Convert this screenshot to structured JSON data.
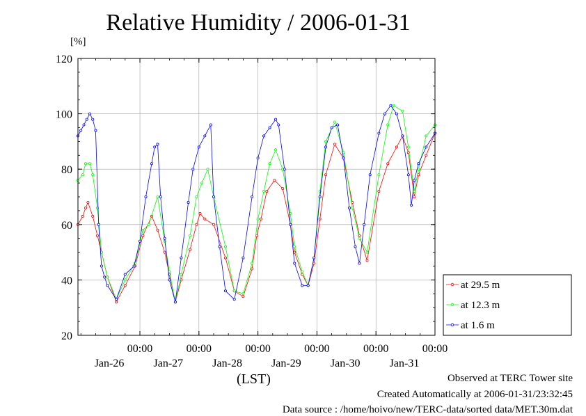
{
  "page": {
    "title": "Relative Humidity / 2006-01-31",
    "unit_label": "[%]",
    "timezone_label": "(LST)",
    "footer": {
      "observed": "Observed at TERC Tower site",
      "created": "Created Automatically at 2006-01-31/23:32:45",
      "source": "Data source : /home/hoivo/new/TERC-data/sorted data/MET.30m.dat"
    }
  },
  "chart_data": {
    "type": "line",
    "title": "Relative Humidity / 2006-01-31",
    "ylabel": "[%]",
    "xlabel": "(LST)",
    "ylim": [
      20,
      120
    ],
    "y_ticks": [
      20,
      40,
      60,
      80,
      100,
      120
    ],
    "xlim": [
      -0.05,
      6.0
    ],
    "x_unit": "days since 2006-01-25 00:00 LST",
    "x_time_label": "00:00",
    "x_ticks": [
      {
        "x": 1,
        "date": "Jan-26"
      },
      {
        "x": 2,
        "date": "Jan-27"
      },
      {
        "x": 3,
        "date": "Jan-28"
      },
      {
        "x": 4,
        "date": "Jan-29"
      },
      {
        "x": 5,
        "date": "Jan-30"
      },
      {
        "x": 6,
        "date": "Jan-31"
      }
    ],
    "grid": true,
    "legend_position": "right, outside plot, bottom",
    "series": [
      {
        "name": "at 29.5 m",
        "color": "#ff0000",
        "x": [
          -0.05,
          0.03,
          0.08,
          0.12,
          0.2,
          0.28,
          0.35,
          0.45,
          0.6,
          0.75,
          0.92,
          1.05,
          1.2,
          1.3,
          1.42,
          1.5,
          1.6,
          1.7,
          1.85,
          1.96,
          2.02,
          2.1,
          2.25,
          2.45,
          2.6,
          2.75,
          2.9,
          2.98,
          3.05,
          3.15,
          3.28,
          3.42,
          3.55,
          3.62,
          3.75,
          3.85,
          3.95,
          4.05,
          4.15,
          4.3,
          4.45,
          4.6,
          4.72,
          4.85,
          5.05,
          5.2,
          5.35,
          5.45,
          5.55,
          5.65,
          5.72,
          5.85,
          6.0
        ],
        "y": [
          60,
          63,
          66,
          68,
          63,
          56,
          50,
          41,
          32,
          38,
          45,
          56,
          63,
          58,
          50,
          42,
          32,
          40,
          51,
          60,
          64,
          62,
          60,
          48,
          36,
          34,
          44,
          56,
          62,
          72,
          76,
          73,
          60,
          50,
          42,
          38,
          46,
          62,
          78,
          89,
          84,
          68,
          56,
          47,
          72,
          82,
          88,
          92,
          86,
          70,
          78,
          85,
          93
        ]
      },
      {
        "name": "at 12.3 m",
        "color": "#00ff00",
        "x": [
          -0.05,
          0.03,
          0.08,
          0.15,
          0.2,
          0.28,
          0.35,
          0.45,
          0.6,
          0.75,
          0.92,
          1.05,
          1.15,
          1.3,
          1.42,
          1.5,
          1.6,
          1.7,
          1.85,
          1.96,
          2.05,
          2.15,
          2.25,
          2.45,
          2.6,
          2.75,
          2.9,
          3.0,
          3.1,
          3.2,
          3.3,
          3.42,
          3.55,
          3.62,
          3.75,
          3.85,
          3.95,
          4.05,
          4.15,
          4.3,
          4.45,
          4.6,
          4.72,
          4.85,
          5.05,
          5.2,
          5.3,
          5.45,
          5.55,
          5.65,
          5.72,
          5.85,
          6.0
        ],
        "y": [
          76,
          78,
          82,
          82,
          78,
          66,
          50,
          41,
          33,
          40,
          46,
          58,
          60,
          70,
          54,
          43,
          32,
          42,
          56,
          70,
          75,
          80,
          70,
          52,
          36,
          35,
          46,
          62,
          72,
          82,
          87,
          80,
          64,
          52,
          43,
          38,
          48,
          72,
          90,
          97,
          86,
          66,
          55,
          50,
          78,
          96,
          103,
          101,
          88,
          72,
          80,
          92,
          96
        ]
      },
      {
        "name": "at 1.6 m",
        "color": "#0000ff",
        "x": [
          -0.05,
          0.0,
          0.05,
          0.1,
          0.15,
          0.2,
          0.25,
          0.3,
          0.35,
          0.4,
          0.45,
          0.6,
          0.75,
          0.9,
          1.0,
          1.1,
          1.2,
          1.25,
          1.3,
          1.35,
          1.42,
          1.5,
          1.6,
          1.7,
          1.82,
          1.9,
          2.0,
          2.1,
          2.2,
          2.25,
          2.35,
          2.45,
          2.6,
          2.75,
          2.9,
          3.0,
          3.1,
          3.2,
          3.3,
          3.35,
          3.45,
          3.55,
          3.62,
          3.75,
          3.85,
          3.95,
          4.05,
          4.15,
          4.25,
          4.35,
          4.45,
          4.55,
          4.65,
          4.72,
          4.8,
          4.9,
          5.05,
          5.15,
          5.25,
          5.35,
          5.45,
          5.55,
          5.6,
          5.65,
          5.72,
          5.85,
          6.0
        ],
        "y": [
          92,
          94,
          96,
          98,
          100,
          98,
          94,
          60,
          45,
          41,
          38,
          33,
          42,
          45,
          54,
          70,
          82,
          88,
          89,
          70,
          55,
          40,
          32,
          48,
          68,
          80,
          88,
          92,
          96,
          70,
          52,
          36,
          33,
          48,
          70,
          84,
          92,
          95,
          98,
          96,
          80,
          60,
          46,
          38,
          38,
          48,
          70,
          88,
          95,
          96,
          84,
          66,
          52,
          46,
          60,
          78,
          93,
          100,
          103,
          100,
          92,
          78,
          67,
          76,
          82,
          88,
          93
        ]
      }
    ]
  }
}
